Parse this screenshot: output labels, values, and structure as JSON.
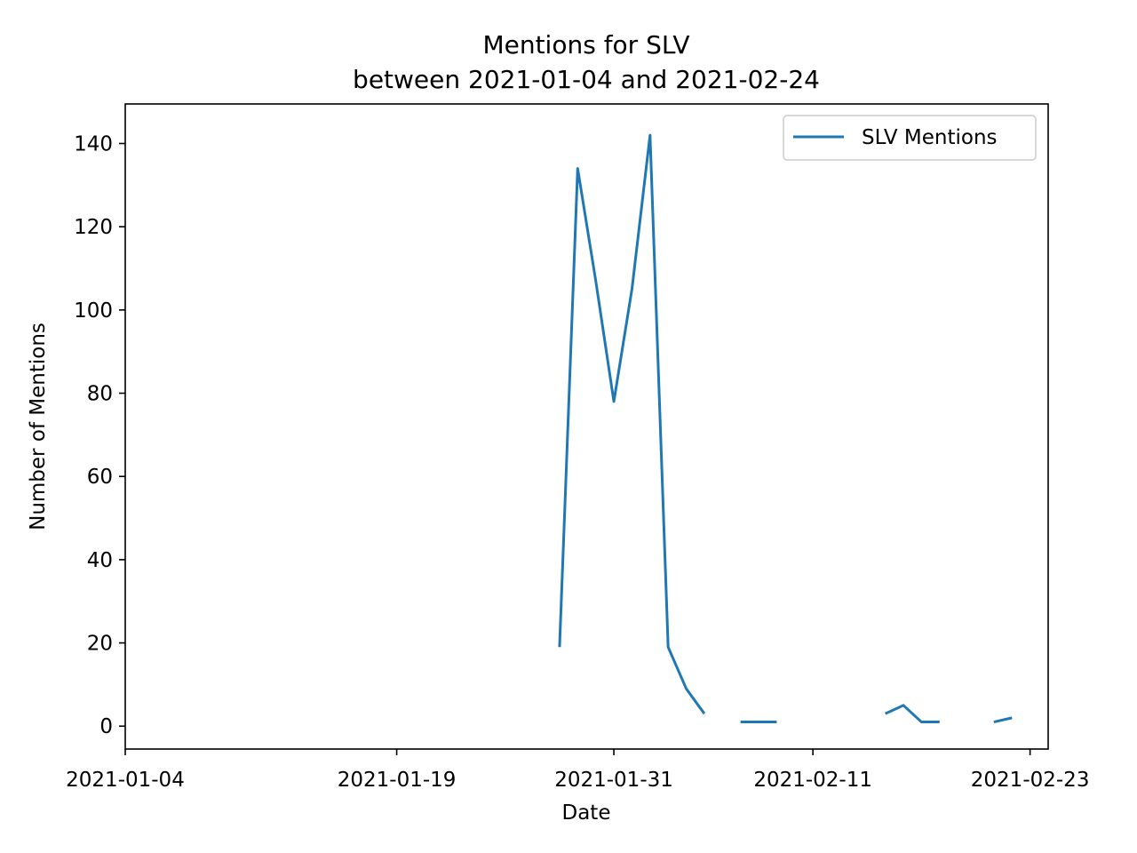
{
  "chart_data": {
    "type": "line",
    "title": "Mentions for SLV",
    "subtitle": "between 2021-01-04 and 2021-02-24",
    "xlabel": "Date",
    "ylabel": "Number of Mentions",
    "xlim": [
      "2021-01-04",
      "2021-02-24"
    ],
    "ylim": [
      -5.5,
      149.5
    ],
    "x_ticks": [
      "2021-01-04",
      "2021-01-19",
      "2021-01-31",
      "2021-02-11",
      "2021-02-23"
    ],
    "y_ticks": [
      0,
      20,
      40,
      60,
      80,
      100,
      120,
      140
    ],
    "grid": false,
    "legend": {
      "placement": "top-right",
      "entries": [
        "SLV Mentions"
      ]
    },
    "series": [
      {
        "name": "SLV Mentions",
        "color": "#1f77b4",
        "points": [
          {
            "x": "2021-01-28",
            "y": 19
          },
          {
            "x": "2021-01-29",
            "y": 134
          },
          {
            "x": "2021-01-30",
            "y": 107
          },
          {
            "x": "2021-01-31",
            "y": 78
          },
          {
            "x": "2021-02-01",
            "y": 105
          },
          {
            "x": "2021-02-02",
            "y": 142
          },
          {
            "x": "2021-02-03",
            "y": 19
          },
          {
            "x": "2021-02-04",
            "y": 9
          },
          {
            "x": "2021-02-05",
            "y": 3
          },
          {
            "x": "2021-02-06",
            "y": null
          },
          {
            "x": "2021-02-07",
            "y": 1
          },
          {
            "x": "2021-02-08",
            "y": 1
          },
          {
            "x": "2021-02-09",
            "y": 1
          },
          {
            "x": "2021-02-10",
            "y": null
          },
          {
            "x": "2021-02-11",
            "y": null
          },
          {
            "x": "2021-02-12",
            "y": null
          },
          {
            "x": "2021-02-13",
            "y": null
          },
          {
            "x": "2021-02-14",
            "y": null
          },
          {
            "x": "2021-02-15",
            "y": 3
          },
          {
            "x": "2021-02-16",
            "y": 5
          },
          {
            "x": "2021-02-17",
            "y": 1
          },
          {
            "x": "2021-02-18",
            "y": 1
          },
          {
            "x": "2021-02-19",
            "y": null
          },
          {
            "x": "2021-02-20",
            "y": null
          },
          {
            "x": "2021-02-21",
            "y": 1
          },
          {
            "x": "2021-02-22",
            "y": 2
          }
        ]
      }
    ]
  }
}
